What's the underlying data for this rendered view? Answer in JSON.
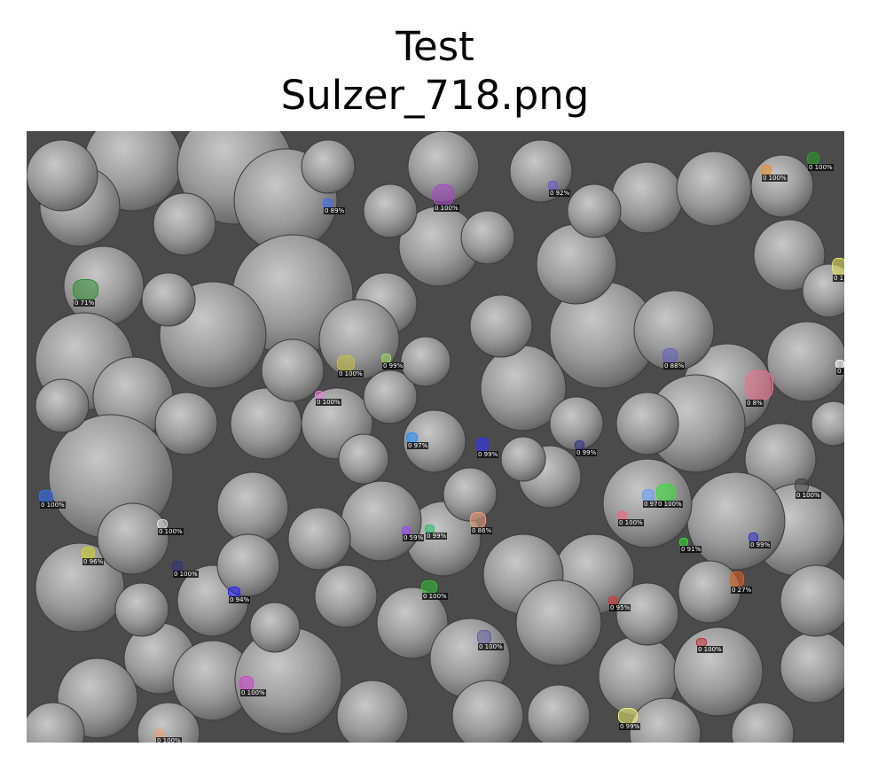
{
  "title_line1": "Test",
  "title_line2": "Sulzer_718.png",
  "detections": [
    {
      "label": "0 100%",
      "color": "#a845c8"
    },
    {
      "label": "0 89%",
      "color": "#3a6bff"
    },
    {
      "label": "0 92%",
      "color": "#6a5acd"
    },
    {
      "label": "0 100%",
      "color": "#f08c28"
    },
    {
      "label": "0 100%",
      "color": "#28a028"
    },
    {
      "label": "0 71%",
      "color": "#2e8b2e"
    },
    {
      "label": "0 99%",
      "color": "#a0e060"
    },
    {
      "label": "0 100%",
      "color": "#c8c040"
    },
    {
      "label": "0 100%",
      "color": "#e880e0"
    },
    {
      "label": "0 88%",
      "color": "#6060c0"
    },
    {
      "label": "0 8%",
      "color": "#f07090"
    },
    {
      "label": "0 1",
      "color": "#e8e860"
    },
    {
      "label": "0 97%",
      "color": "#1e90ff"
    },
    {
      "label": "0 99%",
      "color": "#3030ff"
    },
    {
      "label": "0 99%",
      "color": "#303090"
    },
    {
      "label": "0 100%",
      "color": "#3070ff"
    },
    {
      "label": "0 100%",
      "color": "#e0e0e0"
    },
    {
      "label": "0 96%",
      "color": "#d0d020"
    },
    {
      "label": "0 100%",
      "color": "#303080"
    },
    {
      "label": "0 94%",
      "color": "#2020ff"
    },
    {
      "label": "0 59%",
      "color": "#a040ff"
    },
    {
      "label": "0 99%",
      "color": "#20c060"
    },
    {
      "label": "0 86%",
      "color": "#f0a080"
    },
    {
      "label": "0 100%",
      "color": "#30c030"
    },
    {
      "label": "0 97%",
      "color": "#60a0ff"
    },
    {
      "label": "0 100%",
      "color": "#30e030"
    },
    {
      "label": "0 100%",
      "color": "#ff6080"
    },
    {
      "label": "0 91%",
      "color": "#30e030"
    },
    {
      "label": "0 99%",
      "color": "#3030d0"
    },
    {
      "label": "0 100%",
      "color": "#404040"
    },
    {
      "label": "0 27%",
      "color": "#e06020"
    },
    {
      "label": "0 95%",
      "color": "#e03030"
    },
    {
      "label": "0 100%",
      "color": "#6060a0"
    },
    {
      "label": "0 100%",
      "color": "#d040d0"
    },
    {
      "label": "0 100%",
      "color": "#c03030"
    },
    {
      "label": "0 99%",
      "color": "#f0f070"
    },
    {
      "label": "0 100%",
      "color": "#f0a070"
    },
    {
      "label": "0 1",
      "color": "#ffffff"
    }
  ]
}
